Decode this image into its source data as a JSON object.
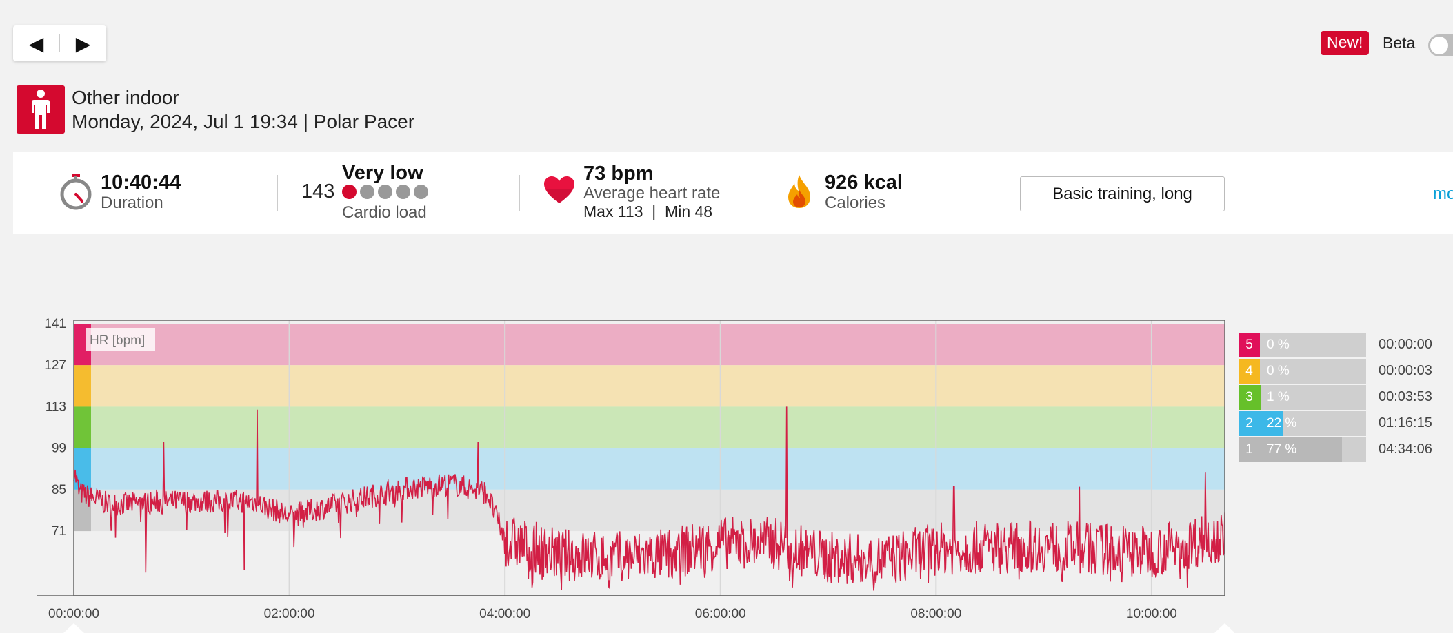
{
  "nav": {
    "prev_icon": "◀",
    "next_icon": "▶"
  },
  "header": {
    "new_badge": "New!",
    "beta_label": "Beta",
    "sport_icon": "person-icon",
    "sport_name": "Other indoor",
    "datetime_device": "Monday, 2024, Jul 1 19:34 | Polar Pacer"
  },
  "summary": {
    "duration_value": "10:40:44",
    "duration_label": "Duration",
    "cardio_value": "143",
    "cardio_level": "Very low",
    "cardio_label": "Cardio load",
    "cardio_dots_filled": 1,
    "cardio_dots_total": 5,
    "hr_avg": "73 bpm",
    "hr_label": "Average heart rate",
    "hr_max_min": "Max 113  |  Min 48",
    "calories_value": "926 kcal",
    "calories_label": "Calories",
    "benefit_button": "Basic training, long",
    "more_link": "mo"
  },
  "colors": {
    "accent": "#d4092f",
    "zone5": "#e0105a",
    "zone4": "#f5b820",
    "zone3": "#66c02a",
    "zone2": "#3cb8e8",
    "zone1": "#b8b8b8",
    "hr_line": "#d21f45",
    "link": "#0aa0d8"
  },
  "chart_data": {
    "type": "line",
    "series_label": "HR [bpm]",
    "x_range_seconds": [
      0,
      38444
    ],
    "y_range": [
      48,
      141
    ],
    "y_ticks": [
      141,
      127,
      113,
      99,
      85,
      71
    ],
    "x_ticks": [
      "00:00:00",
      "02:00:00",
      "04:00:00",
      "06:00:00",
      "08:00:00",
      "10:00:00"
    ],
    "zones": [
      {
        "zone": "5",
        "from": 127,
        "to": 141,
        "percent": "0 %",
        "time": "00:00:00",
        "fraction": 0.0
      },
      {
        "zone": "4",
        "from": 113,
        "to": 127,
        "percent": "0 %",
        "time": "00:00:03",
        "fraction": 0.0
      },
      {
        "zone": "3",
        "from": 99,
        "to": 113,
        "percent": "1 %",
        "time": "00:03:53",
        "fraction": 0.01
      },
      {
        "zone": "2",
        "from": 85,
        "to": 99,
        "percent": "22 %",
        "time": "01:16:15",
        "fraction": 0.22
      },
      {
        "zone": "1",
        "from": 71,
        "to": 85,
        "percent": "77 %",
        "time": "04:34:06",
        "fraction": 0.77
      }
    ],
    "hr_trend": [
      {
        "t": "00:00:00",
        "hr": 92
      },
      {
        "t": "00:03:00",
        "hr": 84
      },
      {
        "t": "00:20:00",
        "hr": 80
      },
      {
        "t": "01:00:00",
        "hr": 81
      },
      {
        "t": "01:40:00",
        "hr": 81
      },
      {
        "t": "02:00:00",
        "hr": 76
      },
      {
        "t": "02:20:00",
        "hr": 79
      },
      {
        "t": "02:40:00",
        "hr": 82
      },
      {
        "t": "03:00:00",
        "hr": 85
      },
      {
        "t": "03:30:00",
        "hr": 87
      },
      {
        "t": "03:50:00",
        "hr": 84
      },
      {
        "t": "04:00:00",
        "hr": 68
      },
      {
        "t": "04:30:00",
        "hr": 63
      },
      {
        "t": "05:00:00",
        "hr": 62
      },
      {
        "t": "05:30:00",
        "hr": 63
      },
      {
        "t": "06:00:00",
        "hr": 67
      },
      {
        "t": "06:30:00",
        "hr": 67
      },
      {
        "t": "07:00:00",
        "hr": 62
      },
      {
        "t": "07:30:00",
        "hr": 61
      },
      {
        "t": "08:00:00",
        "hr": 65
      },
      {
        "t": "09:00:00",
        "hr": 66
      },
      {
        "t": "10:00:00",
        "hr": 64
      },
      {
        "t": "10:40:44",
        "hr": 70
      }
    ],
    "hr_spikes": [
      {
        "t": "00:50:00",
        "hr": 101
      },
      {
        "t": "01:42:00",
        "hr": 112
      },
      {
        "t": "03:45:00",
        "hr": 101
      },
      {
        "t": "06:37:00",
        "hr": 113
      },
      {
        "t": "08:10:00",
        "hr": 86
      },
      {
        "t": "09:20:00",
        "hr": 86
      },
      {
        "t": "10:30:00",
        "hr": 91
      }
    ],
    "hr_dips": [
      {
        "t": "00:40:00",
        "hr": 57
      },
      {
        "t": "01:35:00",
        "hr": 58
      },
      {
        "t": "04:15:00",
        "hr": 52
      },
      {
        "t": "06:40:00",
        "hr": 52
      },
      {
        "t": "10:20:00",
        "hr": 52
      }
    ]
  }
}
